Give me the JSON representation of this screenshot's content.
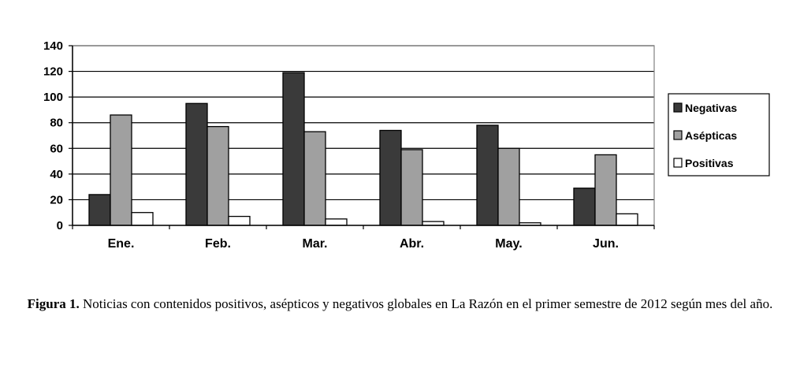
{
  "chart_data": {
    "type": "bar",
    "categories": [
      "Ene.",
      "Feb.",
      "Mar.",
      "Abr.",
      "May.",
      "Jun."
    ],
    "series": [
      {
        "name": "Negativas",
        "values": [
          24,
          95,
          119,
          74,
          78,
          29
        ],
        "color": "#3a3a3a"
      },
      {
        "name": "Asépticas",
        "values": [
          86,
          77,
          73,
          59,
          60,
          55
        ],
        "color": "#a0a0a0"
      },
      {
        "name": "Positivas",
        "values": [
          10,
          7,
          5,
          3,
          2,
          9
        ],
        "color": "#ffffff"
      }
    ],
    "ylim": [
      0,
      140
    ],
    "yticks": [
      0,
      20,
      40,
      60,
      80,
      100,
      120,
      140
    ],
    "ytick_labels": [
      "0",
      "20",
      "40",
      "60",
      "80",
      "100",
      "120",
      "140"
    ],
    "grid": true,
    "legend_position": "right"
  },
  "caption": {
    "label": "Figura 1.",
    "text": "Noticias con contenidos positivos, asépticos y negativos globales en La Razón en el primer semestre de 2012 según mes del año."
  }
}
